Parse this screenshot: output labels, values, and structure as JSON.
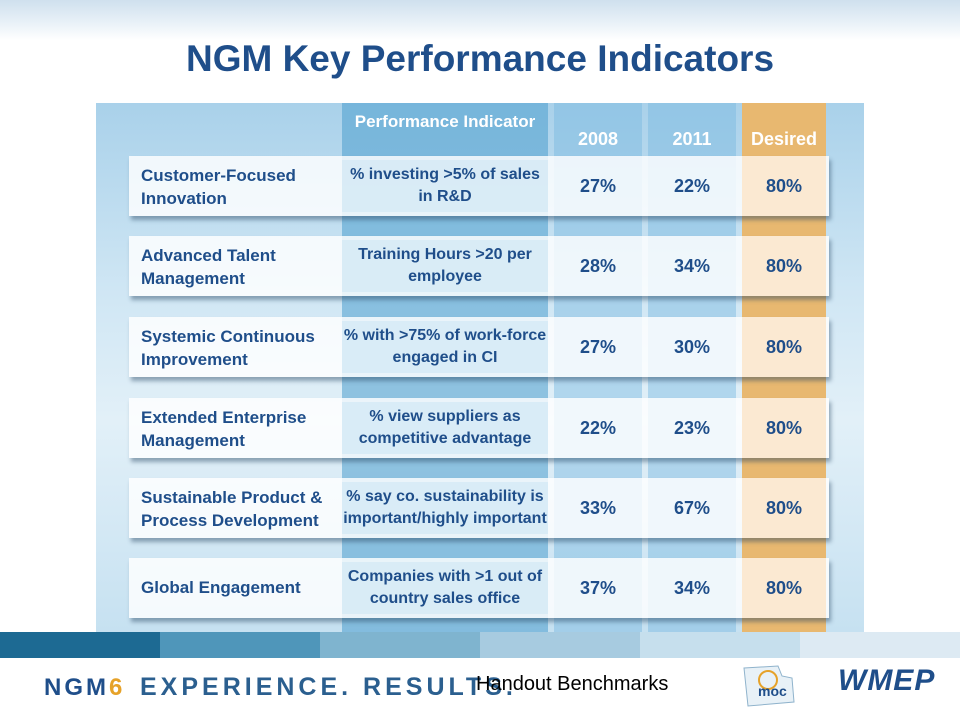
{
  "slide": {
    "title": "NGM Key Performance Indicators"
  },
  "table": {
    "headers": {
      "indicator": "Performance Indicator",
      "y2008": "2008",
      "y2011": "2011",
      "desired": "Desired"
    },
    "rows": [
      {
        "category": "Customer-Focused Innovation",
        "indicator": "% investing >5% of sales in R&D",
        "y2008": "27%",
        "y2011": "22%",
        "desired": "80%"
      },
      {
        "category": "Advanced Talent Management",
        "indicator": "Training Hours >20 per employee",
        "y2008": "28%",
        "y2011": "34%",
        "desired": "80%"
      },
      {
        "category": "Systemic Continuous Improvement",
        "indicator": "% with >75% of work-force engaged in CI",
        "y2008": "27%",
        "y2011": "30%",
        "desired": "80%"
      },
      {
        "category": "Extended Enterprise Management",
        "indicator": "% view suppliers as competitive advantage",
        "y2008": "22%",
        "y2011": "23%",
        "desired": "80%"
      },
      {
        "category": "Sustainable Product & Process Development",
        "indicator": "% say co. sustainability is important/highly important",
        "y2008": "33%",
        "y2011": "67%",
        "desired": "80%"
      },
      {
        "category": "Global Engagement",
        "indicator": "Companies with >1 out of country sales office",
        "y2008": "37%",
        "y2011": "34%",
        "desired": "80%"
      }
    ]
  },
  "footer": {
    "ngm_logo_a": "NGM",
    "ngm_logo_b": "6",
    "tagline": "EXPERIENCE. RESULTS.",
    "handout": "Handout  Benchmarks",
    "moc_logo_text": "moc",
    "wmep_logo": "WMEP"
  },
  "colors": {
    "title": "#1f4e8a",
    "desired_column": "#e8b870",
    "indicator_column": "#4c9ecd"
  }
}
